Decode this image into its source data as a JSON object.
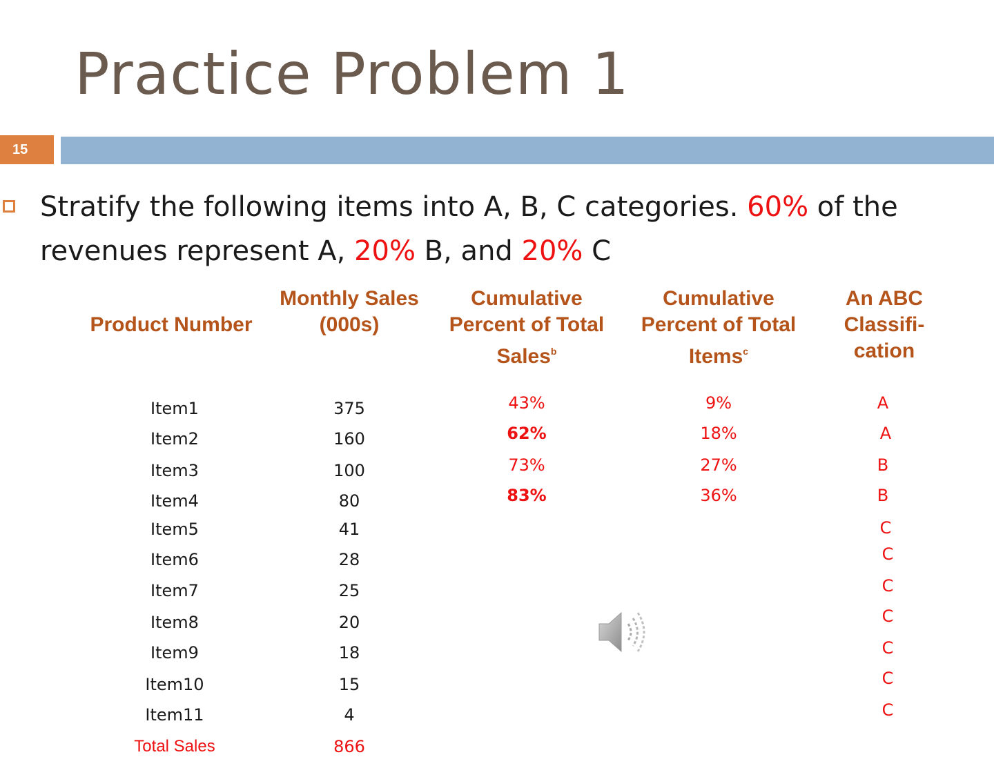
{
  "slide": {
    "title": "Practice Problem 1",
    "number": "15",
    "instruction": {
      "part1": "Stratify the following items into A, B, C categories.  ",
      "pct_a": "60%",
      "part2": " of the revenues represent A, ",
      "pct_b": "20%",
      "part3": " B, and ",
      "pct_c": "20%",
      "part4": " C"
    }
  },
  "table": {
    "headers": {
      "product": "Product Number",
      "sales_line1": "Monthly Sales",
      "sales_line2": "(000s)",
      "cum_sales_line1": "Cumulative",
      "cum_sales_line2": "Percent of Total",
      "cum_sales_line3": "Sales",
      "cum_sales_sup": "b",
      "cum_items_line1": "Cumulative",
      "cum_items_line2": "Percent of Total",
      "cum_items_line3": "Items",
      "cum_items_sup": "c",
      "abc_line1": "An ABC",
      "abc_line2": "Classifi-",
      "abc_line3": "cation"
    },
    "rows": [
      {
        "item": "Item1",
        "sales": "375",
        "cum_sales": "43%",
        "cum_items": "9%",
        "abc": "A"
      },
      {
        "item": "Item2",
        "sales": "160",
        "cum_sales": "62%",
        "cum_items": "18%",
        "abc": "A"
      },
      {
        "item": "Item3",
        "sales": "100",
        "cum_sales": "73%",
        "cum_items": "27%",
        "abc": "B"
      },
      {
        "item": "Item4",
        "sales": "80",
        "cum_sales": "83%",
        "cum_items": "36%",
        "abc": "B"
      },
      {
        "item": "Item5",
        "sales": "41",
        "cum_sales": "",
        "cum_items": "",
        "abc": "C"
      },
      {
        "item": "Item6",
        "sales": "28",
        "cum_sales": "",
        "cum_items": "",
        "abc": "C"
      },
      {
        "item": "Item7",
        "sales": "25",
        "cum_sales": "",
        "cum_items": "",
        "abc": "C"
      },
      {
        "item": "Item8",
        "sales": "20",
        "cum_sales": "",
        "cum_items": "",
        "abc": "C"
      },
      {
        "item": "Item9",
        "sales": "18",
        "cum_sales": "",
        "cum_items": "",
        "abc": "C"
      },
      {
        "item": "Item10",
        "sales": "15",
        "cum_sales": "",
        "cum_items": "",
        "abc": "C"
      },
      {
        "item": "Item11",
        "sales": "4",
        "cum_sales": "",
        "cum_items": "",
        "abc": "C"
      }
    ],
    "total": {
      "label": "Total Sales",
      "value": "866"
    }
  },
  "icons": {
    "speaker": "speaker-icon"
  },
  "colors": {
    "title": "#6b5a4e",
    "accent_orange": "#dd8040",
    "bar_blue": "#93b3d2",
    "header_brown": "#b4541a",
    "highlight_red": "#ee1111"
  }
}
